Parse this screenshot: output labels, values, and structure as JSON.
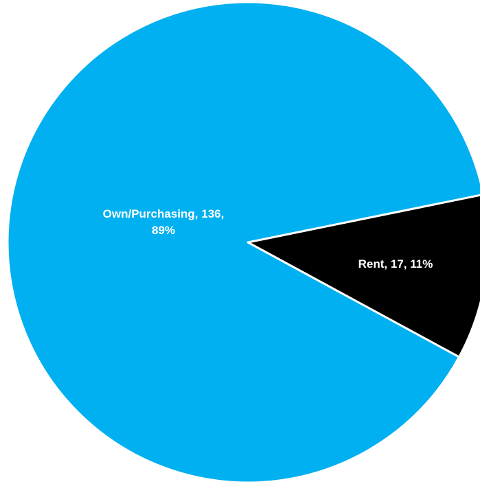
{
  "chart_data": {
    "type": "pie",
    "slices": [
      {
        "name": "Own/Purchasing",
        "value": 136,
        "percent": 89,
        "color": "#00B0F0",
        "label_lines": [
          "Own/Purchasing, 136,",
          "89%"
        ]
      },
      {
        "name": "Rent",
        "value": 17,
        "percent": 11,
        "color": "#000000",
        "label_lines": [
          "Rent, 17, 11%"
        ]
      }
    ],
    "slice_border_color": "#ffffff",
    "label_color": "#ffffff"
  }
}
